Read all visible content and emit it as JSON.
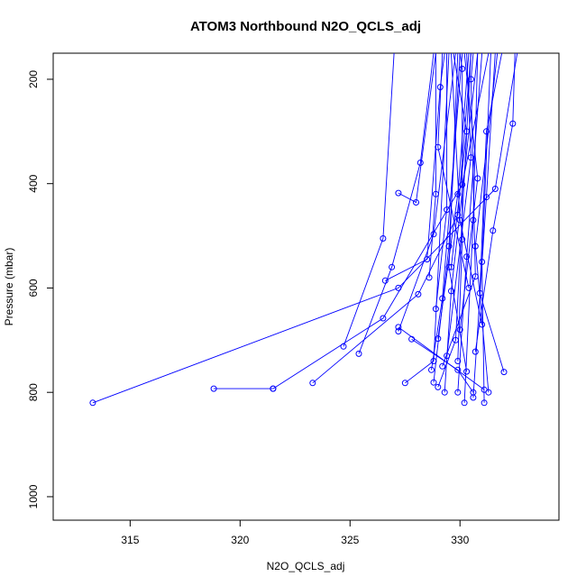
{
  "chart_data": {
    "type": "scatter",
    "title": "ATOM3 Northbound N2O_QCLS_adj",
    "xlabel": "N2O_QCLS_adj",
    "ylabel": "Pressure (mbar)",
    "xlim": [
      311.5,
      334.5
    ],
    "ylim": [
      1045,
      150
    ],
    "y_reversed": true,
    "x_ticks": [
      315,
      320,
      325,
      330
    ],
    "y_ticks": [
      200,
      400,
      600,
      800,
      1000
    ],
    "grid": false,
    "legend": "none",
    "colors": {
      "series": "#0000ff",
      "axis": "#000000"
    },
    "series": [
      {
        "points": [
          [
            313.3,
            820
          ],
          [
            327.2,
            600
          ],
          [
            331.6,
            410
          ],
          [
            332.6,
            150
          ]
        ]
      },
      {
        "points": [
          [
            318.8,
            793
          ],
          [
            321.5,
            793
          ]
        ]
      },
      {
        "points": [
          [
            321.5,
            793
          ],
          [
            326.5,
            658
          ],
          [
            330.1,
            402
          ],
          [
            331.3,
            150
          ]
        ]
      },
      {
        "points": [
          [
            323.3,
            782
          ],
          [
            328.1,
            612
          ],
          [
            329.9,
            460
          ],
          [
            330.5,
            150
          ]
        ]
      },
      {
        "points": [
          [
            324.7,
            712
          ],
          [
            326.5,
            505
          ],
          [
            327.0,
            150
          ]
        ]
      },
      {
        "points": [
          [
            325.4,
            726
          ],
          [
            326.9,
            560
          ],
          [
            328.2,
            360
          ],
          [
            328.8,
            150
          ]
        ]
      },
      {
        "points": [
          [
            327.2,
            683
          ],
          [
            328.8,
            497
          ],
          [
            329.8,
            150
          ]
        ]
      },
      {
        "points": [
          [
            327.5,
            782
          ],
          [
            328.8,
            740
          ],
          [
            329.5,
            150
          ]
        ]
      },
      {
        "points": [
          [
            326.6,
            586
          ],
          [
            328.5,
            545
          ],
          [
            329.1,
            215
          ],
          [
            329.3,
            150
          ]
        ]
      },
      {
        "points": [
          [
            327.2,
            418
          ],
          [
            328.0,
            436
          ],
          [
            328.9,
            150
          ]
        ]
      },
      {
        "points": [
          [
            328.7,
            757
          ],
          [
            329.2,
            620
          ],
          [
            330.1,
            150
          ]
        ]
      },
      {
        "points": [
          [
            328.8,
            781
          ],
          [
            329.5,
            520
          ],
          [
            330.0,
            150
          ]
        ]
      },
      {
        "points": [
          [
            329.3,
            800
          ],
          [
            329.6,
            606
          ],
          [
            330.8,
            150
          ]
        ]
      },
      {
        "points": [
          [
            329.9,
            800
          ],
          [
            330.3,
            540
          ],
          [
            331.0,
            150
          ]
        ]
      },
      {
        "points": [
          [
            330.2,
            820
          ],
          [
            330.6,
            470
          ],
          [
            330.8,
            150
          ]
        ]
      },
      {
        "points": [
          [
            330.6,
            810
          ],
          [
            331.2,
            426
          ],
          [
            331.6,
            150
          ]
        ]
      },
      {
        "points": [
          [
            331.1,
            820
          ],
          [
            331.0,
            550
          ],
          [
            331.4,
            150
          ]
        ]
      },
      {
        "points": [
          [
            331.3,
            800
          ],
          [
            330.7,
            520
          ],
          [
            331.7,
            150
          ]
        ]
      },
      {
        "points": [
          [
            332.0,
            761
          ],
          [
            330.9,
            610
          ],
          [
            331.2,
            300
          ],
          [
            331.9,
            150
          ]
        ]
      },
      {
        "points": [
          [
            330.7,
            722
          ],
          [
            331.5,
            490
          ],
          [
            332.4,
            285
          ],
          [
            332.5,
            150
          ]
        ]
      },
      {
        "points": [
          [
            329.0,
            697
          ],
          [
            329.9,
            420
          ],
          [
            330.4,
            150
          ]
        ]
      },
      {
        "points": [
          [
            329.4,
            730
          ],
          [
            330.5,
            350
          ],
          [
            330.3,
            150
          ]
        ]
      },
      {
        "points": [
          [
            330.0,
            680
          ],
          [
            330.8,
            390
          ],
          [
            330.2,
            150
          ]
        ]
      },
      {
        "points": [
          [
            329.6,
            560
          ],
          [
            330.3,
            300
          ],
          [
            329.7,
            150
          ]
        ]
      },
      {
        "points": [
          [
            328.9,
            640
          ],
          [
            329.4,
            450
          ],
          [
            329.4,
            150
          ]
        ]
      },
      {
        "points": [
          [
            330.4,
            600
          ],
          [
            329.0,
            330
          ],
          [
            329.2,
            150
          ]
        ]
      },
      {
        "points": [
          [
            331.0,
            670
          ],
          [
            330.0,
            470
          ],
          [
            329.6,
            150
          ]
        ]
      },
      {
        "points": [
          [
            329.2,
            750
          ],
          [
            330.7,
            578
          ],
          [
            330.5,
            200
          ],
          [
            330.6,
            150
          ]
        ]
      },
      {
        "points": [
          [
            329.9,
            740
          ],
          [
            330.1,
            507
          ],
          [
            330.1,
            180
          ],
          [
            330.0,
            150
          ]
        ]
      },
      {
        "points": [
          [
            328.6,
            580
          ],
          [
            328.9,
            420
          ],
          [
            328.9,
            150
          ]
        ]
      },
      {
        "points": [
          [
            330.3,
            760
          ],
          [
            329.5,
            560
          ],
          [
            329.9,
            150
          ]
        ]
      },
      {
        "points": [
          [
            327.2,
            675
          ],
          [
            331.1,
            795
          ]
        ]
      },
      {
        "points": [
          [
            327.8,
            698
          ],
          [
            329.9,
            757
          ],
          [
            330.6,
            800
          ]
        ]
      },
      {
        "points": [
          [
            329.0,
            790
          ],
          [
            329.8,
            700
          ],
          [
            330.5,
            150
          ]
        ]
      }
    ]
  }
}
